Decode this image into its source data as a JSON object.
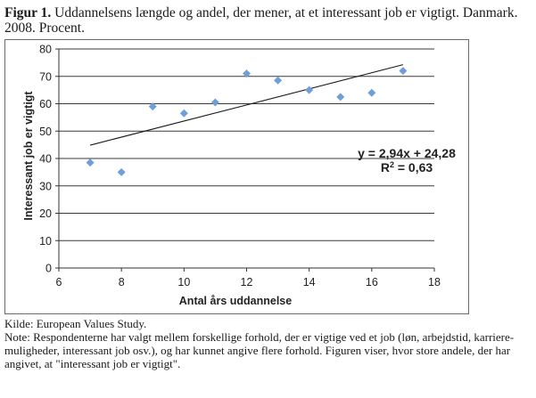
{
  "caption": {
    "label": "Figur 1.",
    "text": "Uddannelsens længde og andel, der mener, at et interessant job er vigtigt. Danmark. 2008. Procent."
  },
  "chart_data": {
    "type": "scatter",
    "x": [
      7,
      8,
      9,
      10,
      11,
      12,
      13,
      14,
      15,
      16,
      17
    ],
    "y": [
      38.5,
      35,
      59,
      56.5,
      60.5,
      71,
      68.5,
      65,
      62.5,
      64,
      72
    ],
    "xlabel": "Antal års uddannelse",
    "ylabel": "Interessant job er vigtigt",
    "xlim": [
      6,
      18
    ],
    "ylim": [
      0,
      80
    ],
    "xticks": [
      6,
      8,
      10,
      12,
      14,
      16,
      18
    ],
    "yticks": [
      0,
      10,
      20,
      30,
      40,
      50,
      60,
      70,
      80
    ],
    "grid": "horizontal",
    "marker_color": "#6f9fd8",
    "trendline": {
      "slope": 2.94,
      "intercept": 24.28,
      "x_range": [
        7,
        17
      ],
      "equation": "y = 2,94x + 24,28",
      "r2_prefix": "R",
      "r2_sup": "2",
      "r2_suffix": " = 0,63"
    }
  },
  "footer": {
    "source": "Kilde: European Values Study.",
    "note": "Note: Respondenterne har valgt mellem forskellige forhold, der er vigtige ved et job (løn, arbejdstid, karriere-muligheder, interessant job osv.), og har kunnet angive flere forhold. Figuren viser, hvor store andele, der har angivet, at \"interessant job er vigtigt\"."
  }
}
